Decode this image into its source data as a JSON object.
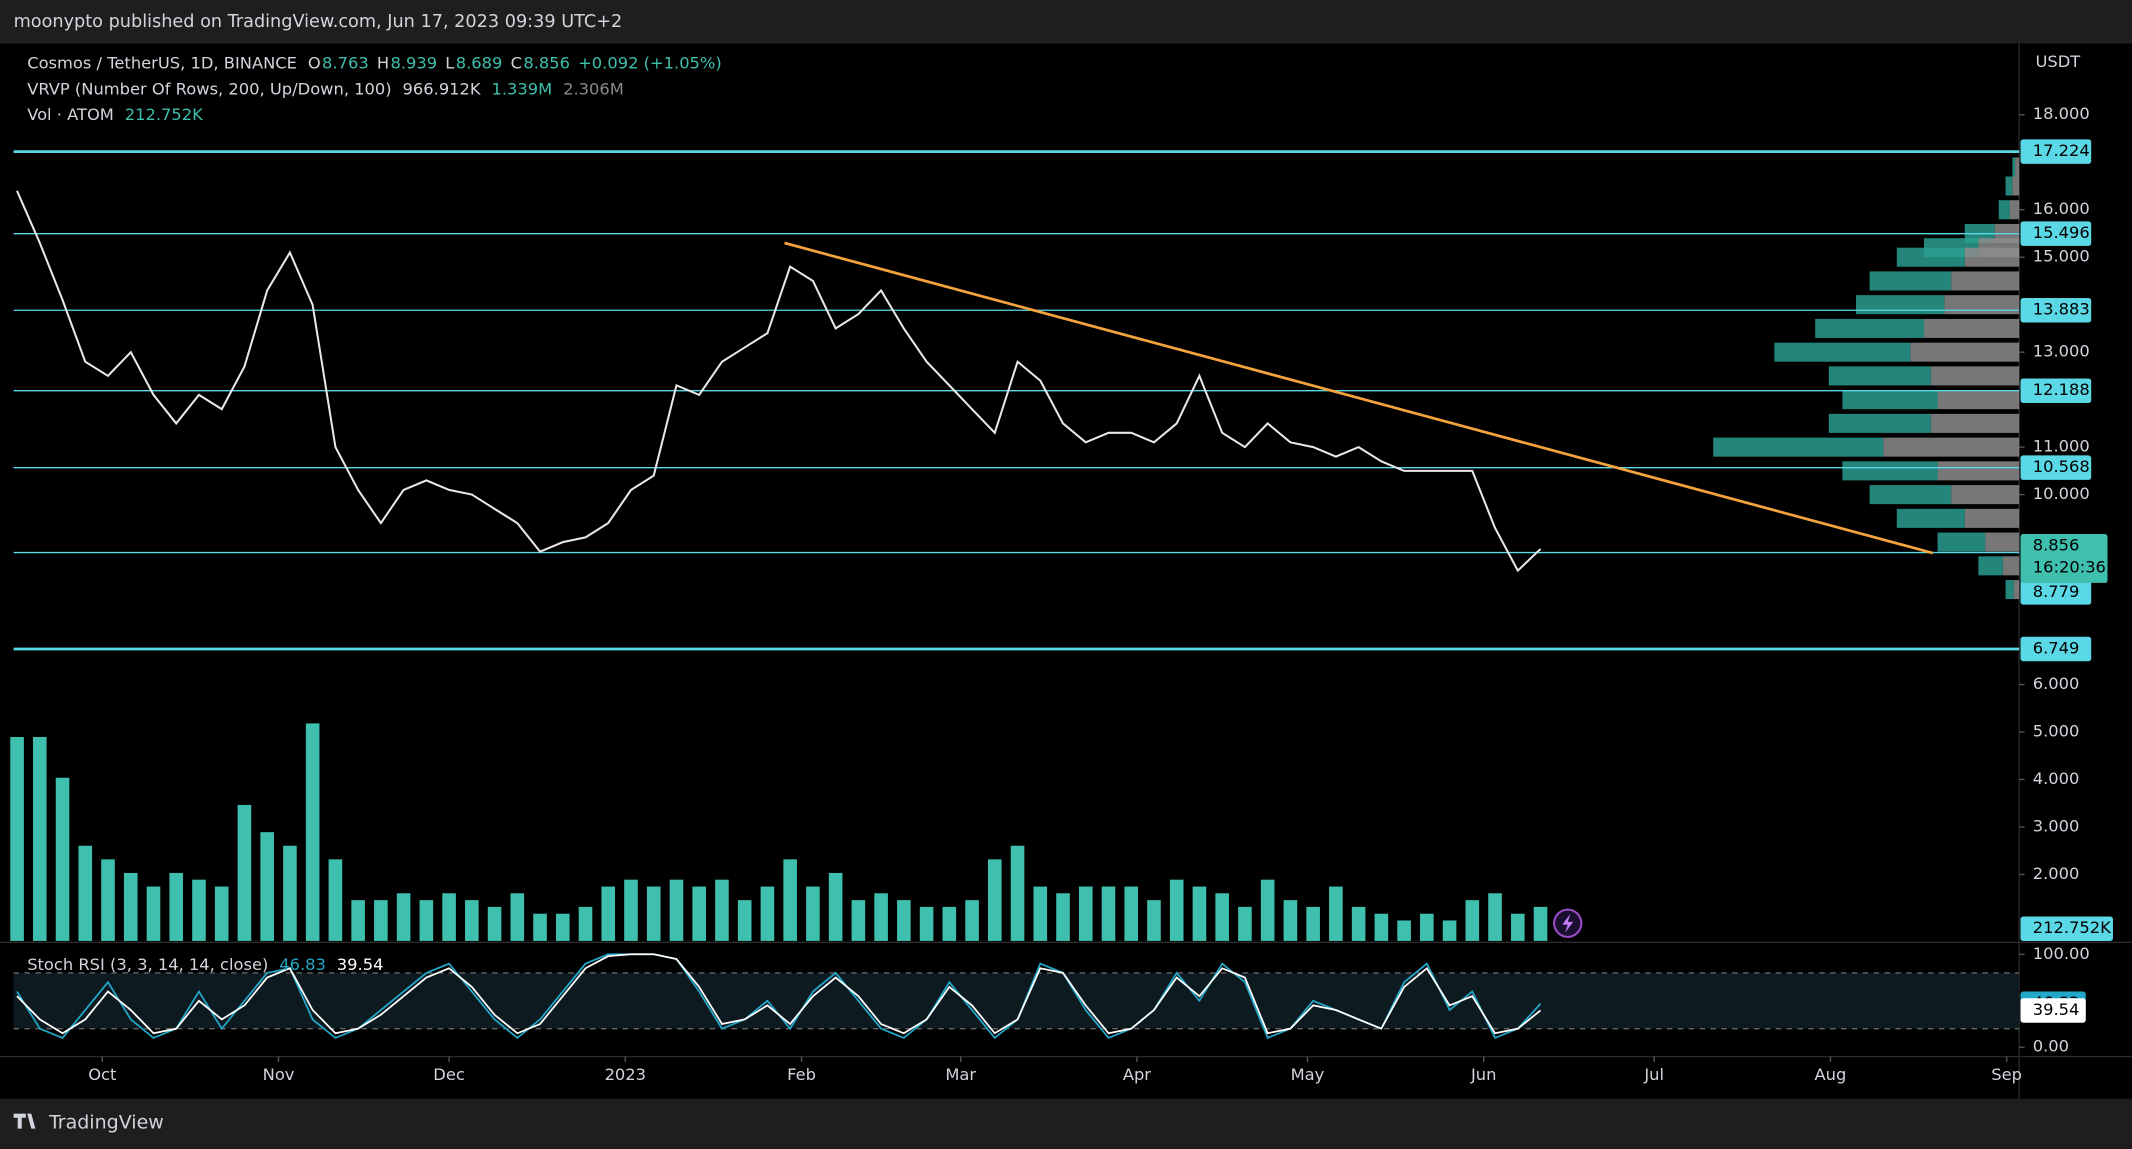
{
  "header": {
    "publisher": "moonypto published on TradingView.com, Jun 17, 2023 09:39 UTC+2",
    "brand": "TradingView"
  },
  "legend": {
    "symbol": "Cosmos / TetherUS, 1D, BINANCE",
    "ohlc": [
      {
        "key": "O",
        "value": 8.763
      },
      {
        "key": "H",
        "value": 8.939
      },
      {
        "key": "L",
        "value": 8.689
      },
      {
        "key": "C",
        "value": 8.856
      }
    ],
    "change": "+0.092 (+1.05%)",
    "vrvp": {
      "name": "VRVP (Number Of Rows, 200, Up/Down, 100)",
      "values": [
        "966.912K",
        "1.339M",
        "2.306M"
      ]
    },
    "volume": {
      "name": "Vol · ATOM",
      "value": "212.752K"
    },
    "stoch": {
      "name": "Stoch RSI (3, 3, 14, 14, close)"
    }
  },
  "chart_data": [
    {
      "type": "line",
      "currency": "USDT",
      "color": "#e8e8e8",
      "volume_color": "#3fbfad",
      "level_color": "#5ad8e6",
      "trend_color": "#f5a33c",
      "x": [
        0,
        4,
        8,
        12,
        16,
        20,
        24,
        28,
        32,
        36,
        40,
        44,
        48,
        52,
        56,
        60,
        64,
        68,
        72,
        76,
        80,
        84,
        88,
        92,
        96,
        100,
        104,
        108,
        112,
        116,
        120,
        124,
        128,
        132,
        136,
        140,
        144,
        148,
        152,
        156,
        160,
        164,
        168,
        172,
        176,
        180,
        184,
        188,
        192,
        196,
        200,
        204,
        208,
        212,
        216,
        220,
        224,
        228,
        232,
        236,
        240,
        244,
        248,
        252,
        256,
        260,
        264,
        268
      ],
      "values": [
        16.4,
        15.3,
        14.1,
        12.8,
        12.5,
        13.0,
        12.1,
        11.5,
        12.1,
        11.8,
        12.7,
        14.3,
        15.1,
        14.0,
        11.0,
        10.1,
        9.4,
        10.1,
        10.3,
        10.1,
        10.0,
        9.7,
        9.4,
        8.8,
        9.0,
        9.1,
        9.4,
        10.1,
        10.4,
        12.3,
        12.1,
        12.8,
        13.1,
        13.4,
        14.8,
        14.5,
        13.5,
        13.8,
        14.3,
        13.5,
        12.8,
        12.3,
        11.8,
        11.3,
        12.8,
        12.4,
        11.5,
        11.1,
        11.3,
        11.3,
        11.1,
        11.5,
        12.5,
        11.3,
        11.0,
        11.5,
        11.1,
        11.0,
        10.8,
        11.0,
        10.7,
        10.5,
        10.5,
        10.5,
        10.5,
        9.3,
        8.4,
        8.856
      ],
      "volume": [
        1275,
        1275,
        1020,
        595,
        510,
        425,
        340,
        425,
        383,
        340,
        850,
        680,
        595,
        1360,
        510,
        255,
        255,
        298,
        255,
        298,
        255,
        213,
        298,
        170,
        170,
        213,
        340,
        383,
        340,
        383,
        340,
        383,
        255,
        340,
        510,
        340,
        425,
        255,
        298,
        255,
        213,
        213,
        255,
        510,
        595,
        340,
        298,
        340,
        340,
        340,
        255,
        383,
        340,
        298,
        213,
        383,
        255,
        213,
        340,
        213,
        170,
        128,
        170,
        128,
        255,
        298,
        170,
        212.752
      ],
      "countdown": "16:20:36",
      "levels": [
        17.224,
        15.496,
        13.883,
        12.188,
        10.568,
        8.779,
        6.749
      ],
      "trendline": {
        "x": [
          135,
          337
        ],
        "y": [
          15.3,
          8.77
        ]
      },
      "profile": {
        "prices": [
          16.9,
          16.5,
          16,
          15.5,
          15.2,
          15,
          14.5,
          14,
          13.5,
          13,
          12.5,
          12,
          11.5,
          11,
          10.5,
          10,
          9.5,
          9,
          8.5,
          8
        ],
        "up": [
          2,
          5,
          8,
          22,
          40,
          50,
          60,
          65,
          80,
          100,
          75,
          70,
          75,
          125,
          70,
          60,
          50,
          35,
          18,
          6
        ],
        "down": [
          3,
          5,
          7,
          18,
          30,
          40,
          50,
          55,
          70,
          80,
          65,
          60,
          65,
          100,
          60,
          50,
          40,
          25,
          12,
          4
        ]
      },
      "xlim": [
        -3,
        351
      ],
      "xticks": [
        {
          "value": 15,
          "label": "Oct"
        },
        {
          "value": 46,
          "label": "Nov"
        },
        {
          "value": 76,
          "label": "Dec"
        },
        {
          "value": 107,
          "label": "2023"
        },
        {
          "value": 138,
          "label": "Feb"
        },
        {
          "value": 166,
          "label": "Mar"
        },
        {
          "value": 197,
          "label": "Apr"
        },
        {
          "value": 227,
          "label": "May"
        },
        {
          "value": 258,
          "label": "Jun"
        },
        {
          "value": 288,
          "label": "Jul"
        },
        {
          "value": 319,
          "label": "Aug"
        },
        {
          "value": 350,
          "label": "Sep"
        }
      ],
      "ylim": [
        0.6,
        19.5
      ],
      "yticks": [
        {
          "value": 18,
          "label": "18.000"
        },
        {
          "value": 16,
          "label": "16.000"
        },
        {
          "value": 15,
          "label": "15.000"
        },
        {
          "value": 13,
          "label": "13.000"
        },
        {
          "value": 11,
          "label": "11.000"
        },
        {
          "value": 10,
          "label": "10.000"
        },
        {
          "value": 6,
          "label": "6.000"
        },
        {
          "value": 5,
          "label": "5.000"
        },
        {
          "value": 4,
          "label": "4.000"
        },
        {
          "value": 3,
          "label": "3.000"
        },
        {
          "value": 2,
          "label": "2.000"
        }
      ]
    },
    {
      "type": "line",
      "bands": [
        80,
        20
      ],
      "series": [
        {
          "color": "#22a7c8",
          "values": [
            60,
            20,
            10,
            40,
            70,
            30,
            10,
            20,
            60,
            20,
            50,
            80,
            85,
            30,
            10,
            20,
            40,
            60,
            80,
            90,
            60,
            30,
            10,
            30,
            60,
            90,
            100,
            100,
            100,
            95,
            60,
            20,
            30,
            50,
            20,
            60,
            80,
            50,
            20,
            10,
            30,
            70,
            40,
            10,
            30,
            90,
            80,
            40,
            10,
            20,
            40,
            80,
            50,
            90,
            70,
            10,
            20,
            50,
            40,
            30,
            20,
            70,
            90,
            40,
            60,
            10,
            20,
            46.83
          ]
        },
        {
          "color": "#ffffff",
          "values": [
            55,
            30,
            15,
            30,
            60,
            40,
            15,
            20,
            50,
            30,
            45,
            75,
            85,
            40,
            15,
            20,
            35,
            55,
            75,
            85,
            65,
            35,
            15,
            25,
            55,
            85,
            98,
            100,
            100,
            95,
            65,
            25,
            30,
            45,
            25,
            55,
            75,
            55,
            25,
            15,
            30,
            65,
            45,
            15,
            30,
            85,
            80,
            45,
            15,
            20,
            40,
            75,
            55,
            85,
            75,
            15,
            20,
            45,
            40,
            30,
            20,
            65,
            85,
            45,
            55,
            15,
            20,
            39.54
          ]
        }
      ],
      "ylim": [
        -10,
        110
      ],
      "yticks": [
        {
          "value": 100,
          "label": "100.00"
        },
        {
          "value": 0,
          "label": "0.00"
        }
      ]
    }
  ]
}
